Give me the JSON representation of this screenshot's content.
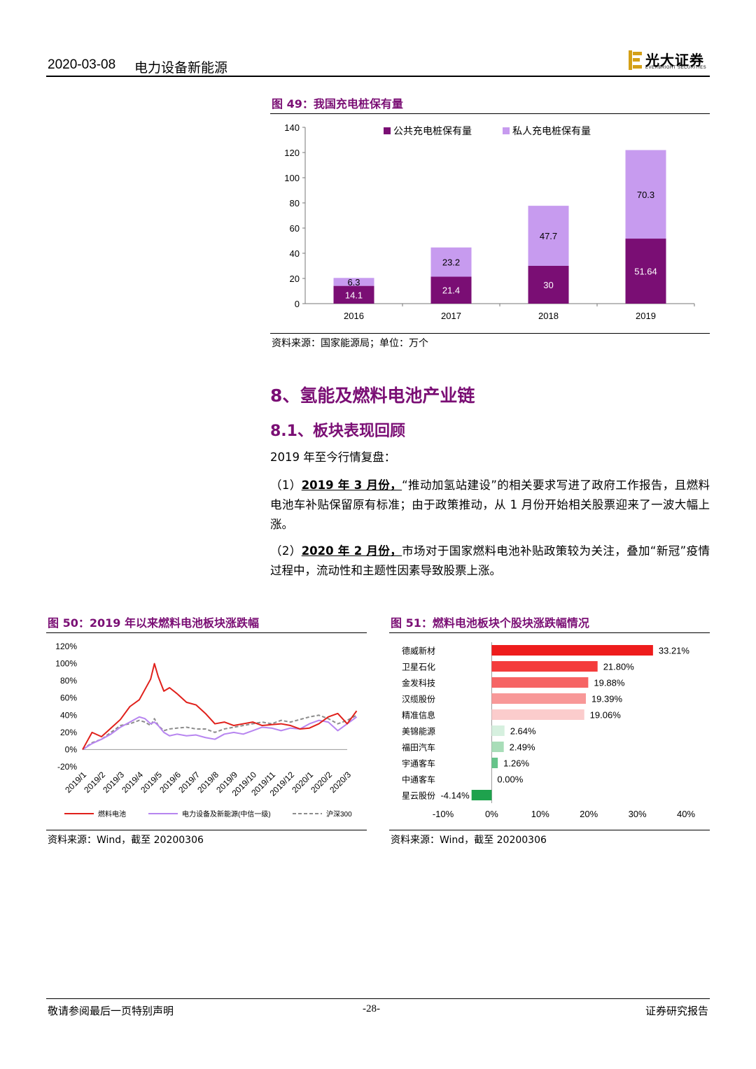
{
  "header": {
    "date": "2020-03-08",
    "sector": "电力设备新能源",
    "logo_cn": "光大证券",
    "logo_en": "EVERBRIGHT SECURITIES"
  },
  "fig49": {
    "title": "图 49：我国充电桩保有量",
    "source": "资料来源：国家能源局；单位：万个",
    "chart_data": {
      "type": "bar",
      "stacked": true,
      "categories": [
        "2016",
        "2017",
        "2018",
        "2019"
      ],
      "series": [
        {
          "name": "公共充电桩保有量",
          "values": [
            14.1,
            21.4,
            30,
            51.64
          ],
          "color": "#7a0e74"
        },
        {
          "name": "私人充电桩保有量",
          "values": [
            6.3,
            23.2,
            47.7,
            70.3
          ],
          "color": "#c79bef"
        }
      ],
      "value_labels": [
        [
          "14.1",
          "21.4",
          "30",
          "51.64"
        ],
        [
          "6.3",
          "23.2",
          "47.7",
          "70.3"
        ]
      ],
      "ylim": [
        0,
        140
      ],
      "yticks": [
        0,
        20,
        40,
        60,
        80,
        100,
        120,
        140
      ],
      "legend": "top-center",
      "grid": false
    }
  },
  "section": {
    "h1": "8、氢能及燃料电池产业链",
    "h2": "8.1、板块表现回顾",
    "intro": "2019 年至今行情复盘：",
    "p1_prefix": "（1）",
    "p1_bold": "2019 年 3 月份，",
    "p1_text": "“推动加氢站建设”的相关要求写进了政府工作报告，且燃料电池车补贴保留原有标准；由于政策推动，从 1 月份开始相关股票迎来了一波大幅上涨。",
    "p2_prefix": "（2）",
    "p2_bold": "2020 年 2 月份，",
    "p2_text": "市场对于国家燃料电池补贴政策较为关注，叠加“新冠”疫情过程中，流动性和主题性因素导致股票上涨。"
  },
  "fig50": {
    "title": "图 50：2019 年以来燃料电池板块涨跌幅",
    "source": "资料来源：Wind，截至 20200306",
    "chart_data": {
      "type": "line",
      "x": [
        "2019/1",
        "2019/2",
        "2019/3",
        "2019/4",
        "2019/5",
        "2019/6",
        "2019/7",
        "2019/8",
        "2019/9",
        "2019/10",
        "2019/11",
        "2019/12",
        "2020/1",
        "2020/2",
        "2020/3"
      ],
      "x_values": [
        0,
        0.5,
        1,
        1.5,
        2,
        2.5,
        3,
        3.3,
        3.6,
        3.8,
        4,
        4.3,
        4.6,
        5,
        5.5,
        6,
        6.5,
        7,
        7.5,
        8,
        8.5,
        9,
        9.5,
        10,
        10.5,
        11,
        11.5,
        12,
        12.5,
        13,
        13.5,
        14,
        14.5
      ],
      "series": [
        {
          "name": "燃料电池",
          "color": "#e0201b",
          "values": [
            0,
            20,
            15,
            25,
            35,
            50,
            58,
            70,
            82,
            100,
            85,
            68,
            72,
            65,
            55,
            52,
            42,
            30,
            32,
            28,
            30,
            32,
            28,
            29,
            30,
            28,
            24,
            25,
            30,
            38,
            42,
            30,
            45
          ]
        },
        {
          "name": "电力设备及新能源(中信一级)",
          "color": "#b785f0",
          "values": [
            0,
            7,
            12,
            18,
            26,
            32,
            38,
            36,
            30,
            32,
            28,
            20,
            16,
            18,
            16,
            17,
            14,
            12,
            18,
            20,
            18,
            22,
            26,
            25,
            22,
            25,
            24,
            30,
            34,
            32,
            22,
            30,
            38
          ]
        },
        {
          "name": "沪深300",
          "color": "#8c8c8c",
          "values": [
            0,
            8,
            12,
            20,
            28,
            30,
            34,
            32,
            28,
            36,
            28,
            22,
            24,
            25,
            26,
            24,
            24,
            20,
            24,
            26,
            28,
            30,
            32,
            30,
            34,
            32,
            35,
            38,
            40,
            36,
            30,
            34,
            40
          ]
        }
      ],
      "yticks": [
        "120%",
        "100%",
        "80%",
        "60%",
        "40%",
        "20%",
        "0%",
        "-20%"
      ],
      "ylim": [
        -20,
        120
      ],
      "legend": "bottom",
      "grid": false
    }
  },
  "fig51": {
    "title": "图 51：燃料电池板块个股块涨跌幅情况",
    "source": "资料来源：Wind，截至 20200306",
    "chart_data": {
      "type": "bar",
      "orientation": "horizontal",
      "categories": [
        "德威新材",
        "卫星石化",
        "金发科技",
        "汉缆股份",
        "精准信息",
        "美锦能源",
        "福田汽车",
        "宇通客车",
        "中通客车",
        "星云股份"
      ],
      "values": [
        33.21,
        21.8,
        19.88,
        19.39,
        19.06,
        2.64,
        2.49,
        1.26,
        0.0,
        -4.14
      ],
      "value_labels": [
        "33.21%",
        "21.80%",
        "19.88%",
        "19.39%",
        "19.06%",
        "2.64%",
        "2.49%",
        "1.26%",
        "0.00%",
        "-4.14%"
      ],
      "colors": [
        "#ee1c1c",
        "#f43c3c",
        "#f66464",
        "#f89898",
        "#fbcccc",
        "#d6f0df",
        "#a8ddb8",
        "#66c48a",
        "#3db36c",
        "#1ea24d"
      ],
      "xlim": [
        -10,
        40
      ],
      "xticks": [
        "-10%",
        "0%",
        "10%",
        "20%",
        "30%",
        "40%"
      ],
      "grid": false
    }
  },
  "footer": {
    "left": "敬请参阅最后一页特别声明",
    "center": "-28-",
    "right": "证券研究报告"
  }
}
